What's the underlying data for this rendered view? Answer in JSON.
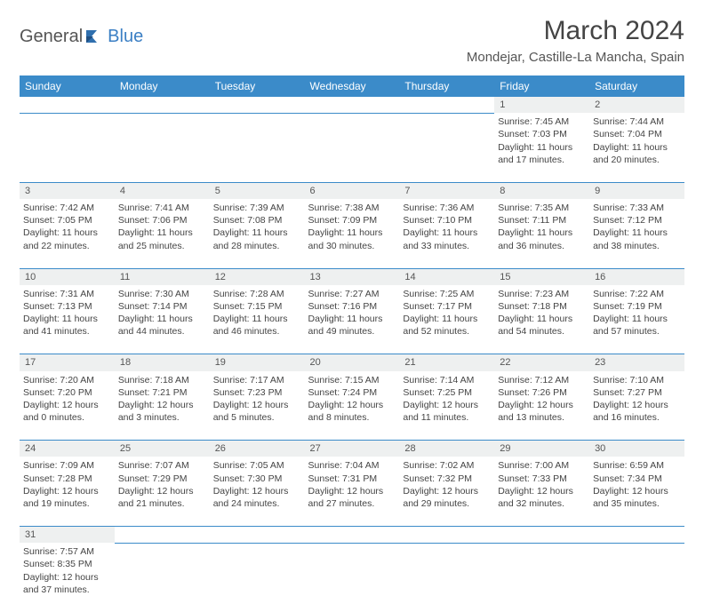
{
  "brand": {
    "part1": "General",
    "part2": "Blue",
    "logo_color": "#2f6fae",
    "text2_color": "#3b7fc4"
  },
  "title": "March 2024",
  "location": "Mondejar, Castille-La Mancha, Spain",
  "header_bg": "#3b8bc9",
  "daynum_bg": "#eef0f0",
  "border_color": "#3b8bc9",
  "day_headers": [
    "Sunday",
    "Monday",
    "Tuesday",
    "Wednesday",
    "Thursday",
    "Friday",
    "Saturday"
  ],
  "weeks": [
    [
      null,
      null,
      null,
      null,
      null,
      {
        "n": "1",
        "sr": "Sunrise: 7:45 AM",
        "ss": "Sunset: 7:03 PM",
        "d1": "Daylight: 11 hours",
        "d2": "and 17 minutes."
      },
      {
        "n": "2",
        "sr": "Sunrise: 7:44 AM",
        "ss": "Sunset: 7:04 PM",
        "d1": "Daylight: 11 hours",
        "d2": "and 20 minutes."
      }
    ],
    [
      {
        "n": "3",
        "sr": "Sunrise: 7:42 AM",
        "ss": "Sunset: 7:05 PM",
        "d1": "Daylight: 11 hours",
        "d2": "and 22 minutes."
      },
      {
        "n": "4",
        "sr": "Sunrise: 7:41 AM",
        "ss": "Sunset: 7:06 PM",
        "d1": "Daylight: 11 hours",
        "d2": "and 25 minutes."
      },
      {
        "n": "5",
        "sr": "Sunrise: 7:39 AM",
        "ss": "Sunset: 7:08 PM",
        "d1": "Daylight: 11 hours",
        "d2": "and 28 minutes."
      },
      {
        "n": "6",
        "sr": "Sunrise: 7:38 AM",
        "ss": "Sunset: 7:09 PM",
        "d1": "Daylight: 11 hours",
        "d2": "and 30 minutes."
      },
      {
        "n": "7",
        "sr": "Sunrise: 7:36 AM",
        "ss": "Sunset: 7:10 PM",
        "d1": "Daylight: 11 hours",
        "d2": "and 33 minutes."
      },
      {
        "n": "8",
        "sr": "Sunrise: 7:35 AM",
        "ss": "Sunset: 7:11 PM",
        "d1": "Daylight: 11 hours",
        "d2": "and 36 minutes."
      },
      {
        "n": "9",
        "sr": "Sunrise: 7:33 AM",
        "ss": "Sunset: 7:12 PM",
        "d1": "Daylight: 11 hours",
        "d2": "and 38 minutes."
      }
    ],
    [
      {
        "n": "10",
        "sr": "Sunrise: 7:31 AM",
        "ss": "Sunset: 7:13 PM",
        "d1": "Daylight: 11 hours",
        "d2": "and 41 minutes."
      },
      {
        "n": "11",
        "sr": "Sunrise: 7:30 AM",
        "ss": "Sunset: 7:14 PM",
        "d1": "Daylight: 11 hours",
        "d2": "and 44 minutes."
      },
      {
        "n": "12",
        "sr": "Sunrise: 7:28 AM",
        "ss": "Sunset: 7:15 PM",
        "d1": "Daylight: 11 hours",
        "d2": "and 46 minutes."
      },
      {
        "n": "13",
        "sr": "Sunrise: 7:27 AM",
        "ss": "Sunset: 7:16 PM",
        "d1": "Daylight: 11 hours",
        "d2": "and 49 minutes."
      },
      {
        "n": "14",
        "sr": "Sunrise: 7:25 AM",
        "ss": "Sunset: 7:17 PM",
        "d1": "Daylight: 11 hours",
        "d2": "and 52 minutes."
      },
      {
        "n": "15",
        "sr": "Sunrise: 7:23 AM",
        "ss": "Sunset: 7:18 PM",
        "d1": "Daylight: 11 hours",
        "d2": "and 54 minutes."
      },
      {
        "n": "16",
        "sr": "Sunrise: 7:22 AM",
        "ss": "Sunset: 7:19 PM",
        "d1": "Daylight: 11 hours",
        "d2": "and 57 minutes."
      }
    ],
    [
      {
        "n": "17",
        "sr": "Sunrise: 7:20 AM",
        "ss": "Sunset: 7:20 PM",
        "d1": "Daylight: 12 hours",
        "d2": "and 0 minutes."
      },
      {
        "n": "18",
        "sr": "Sunrise: 7:18 AM",
        "ss": "Sunset: 7:21 PM",
        "d1": "Daylight: 12 hours",
        "d2": "and 3 minutes."
      },
      {
        "n": "19",
        "sr": "Sunrise: 7:17 AM",
        "ss": "Sunset: 7:23 PM",
        "d1": "Daylight: 12 hours",
        "d2": "and 5 minutes."
      },
      {
        "n": "20",
        "sr": "Sunrise: 7:15 AM",
        "ss": "Sunset: 7:24 PM",
        "d1": "Daylight: 12 hours",
        "d2": "and 8 minutes."
      },
      {
        "n": "21",
        "sr": "Sunrise: 7:14 AM",
        "ss": "Sunset: 7:25 PM",
        "d1": "Daylight: 12 hours",
        "d2": "and 11 minutes."
      },
      {
        "n": "22",
        "sr": "Sunrise: 7:12 AM",
        "ss": "Sunset: 7:26 PM",
        "d1": "Daylight: 12 hours",
        "d2": "and 13 minutes."
      },
      {
        "n": "23",
        "sr": "Sunrise: 7:10 AM",
        "ss": "Sunset: 7:27 PM",
        "d1": "Daylight: 12 hours",
        "d2": "and 16 minutes."
      }
    ],
    [
      {
        "n": "24",
        "sr": "Sunrise: 7:09 AM",
        "ss": "Sunset: 7:28 PM",
        "d1": "Daylight: 12 hours",
        "d2": "and 19 minutes."
      },
      {
        "n": "25",
        "sr": "Sunrise: 7:07 AM",
        "ss": "Sunset: 7:29 PM",
        "d1": "Daylight: 12 hours",
        "d2": "and 21 minutes."
      },
      {
        "n": "26",
        "sr": "Sunrise: 7:05 AM",
        "ss": "Sunset: 7:30 PM",
        "d1": "Daylight: 12 hours",
        "d2": "and 24 minutes."
      },
      {
        "n": "27",
        "sr": "Sunrise: 7:04 AM",
        "ss": "Sunset: 7:31 PM",
        "d1": "Daylight: 12 hours",
        "d2": "and 27 minutes."
      },
      {
        "n": "28",
        "sr": "Sunrise: 7:02 AM",
        "ss": "Sunset: 7:32 PM",
        "d1": "Daylight: 12 hours",
        "d2": "and 29 minutes."
      },
      {
        "n": "29",
        "sr": "Sunrise: 7:00 AM",
        "ss": "Sunset: 7:33 PM",
        "d1": "Daylight: 12 hours",
        "d2": "and 32 minutes."
      },
      {
        "n": "30",
        "sr": "Sunrise: 6:59 AM",
        "ss": "Sunset: 7:34 PM",
        "d1": "Daylight: 12 hours",
        "d2": "and 35 minutes."
      }
    ],
    [
      {
        "n": "31",
        "sr": "Sunrise: 7:57 AM",
        "ss": "Sunset: 8:35 PM",
        "d1": "Daylight: 12 hours",
        "d2": "and 37 minutes."
      },
      null,
      null,
      null,
      null,
      null,
      null
    ]
  ]
}
